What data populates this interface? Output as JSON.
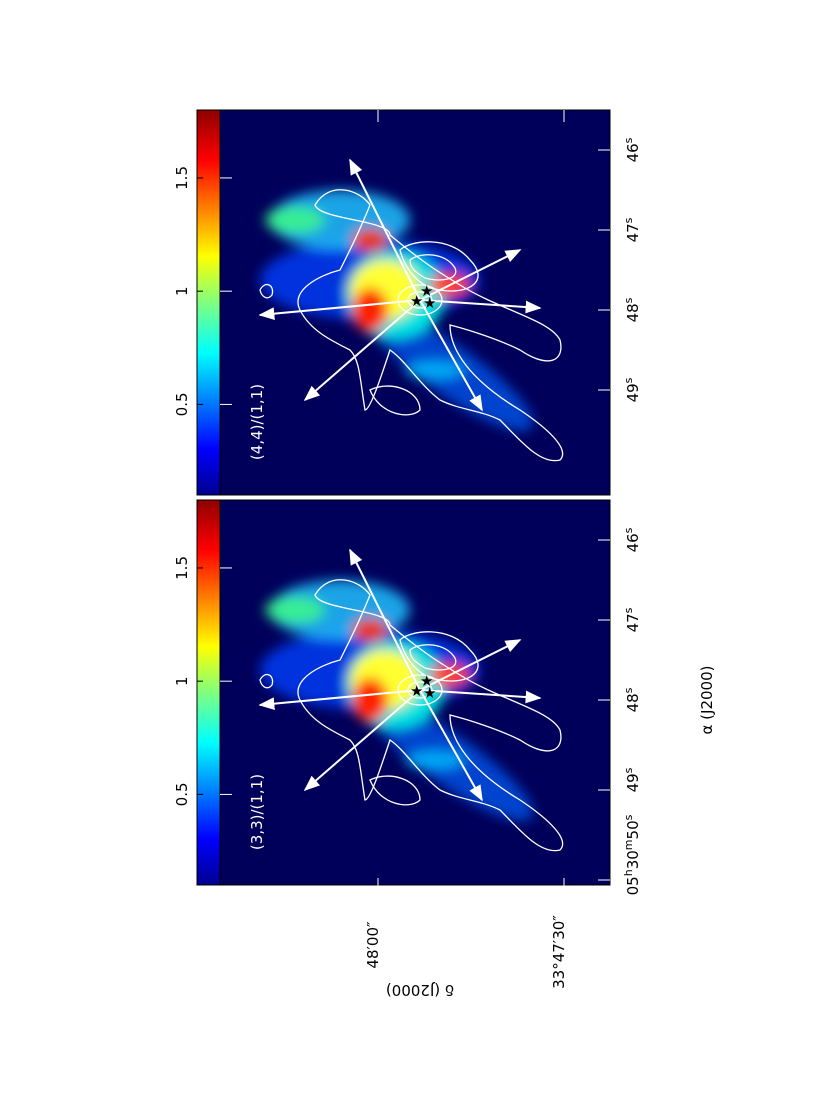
{
  "figure": {
    "panels": [
      {
        "label": "(3,3)/(1,1)",
        "colorbar": {
          "lim": [
            0.1,
            1.8
          ],
          "ticks": [
            0.5,
            1,
            1.5
          ]
        },
        "ra_ticks": [
          [
            "05",
            "h",
            "30",
            "m",
            "50",
            "s"
          ],
          [
            "49",
            "s"
          ],
          [
            "48",
            "s"
          ],
          [
            "47",
            "s"
          ],
          [
            "46",
            "s"
          ]
        ]
      },
      {
        "label": "(4,4)/(1,1)",
        "colorbar": {
          "lim": [
            0.1,
            1.8
          ],
          "ticks": [
            0.5,
            1,
            1.5
          ]
        },
        "ra_ticks": [
          [
            "49",
            "s"
          ],
          [
            "48",
            "s"
          ],
          [
            "47",
            "s"
          ],
          [
            "46",
            "s"
          ]
        ]
      }
    ],
    "dec_ticks": [
      "48′00″",
      "33°47′30″"
    ],
    "xlabel": "α (J2000)",
    "ylabel": "δ (J2000)"
  }
}
